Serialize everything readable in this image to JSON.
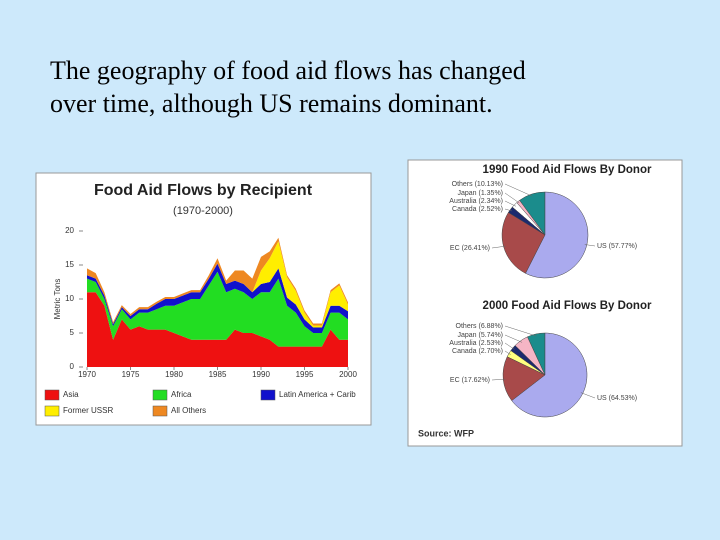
{
  "slide": {
    "title_lines": [
      "The geography of food aid flows has changed",
      "over time, although US remains dominant."
    ]
  },
  "source": "Source: WFP",
  "chart_data": [
    {
      "type": "area",
      "stacked": true,
      "title": "Food Aid Flows by Recipient",
      "subtitle": "(1970-2000)",
      "ylabel": "Metric Tons",
      "x": [
        1970,
        1971,
        1972,
        1973,
        1974,
        1975,
        1976,
        1977,
        1978,
        1979,
        1980,
        1981,
        1982,
        1983,
        1984,
        1985,
        1986,
        1987,
        1988,
        1989,
        1990,
        1991,
        1992,
        1993,
        1994,
        1995,
        1996,
        1997,
        1998,
        1999,
        2000
      ],
      "xlim": [
        1970,
        2000
      ],
      "xticks": [
        1970,
        1975,
        1980,
        1985,
        1990,
        1995,
        2000
      ],
      "ylim": [
        0,
        20
      ],
      "yticks": [
        0,
        5,
        10,
        15,
        20
      ],
      "series": [
        {
          "name": "Asia",
          "color": "#ee1111",
          "values": [
            11,
            11,
            9,
            4,
            7,
            5.5,
            6,
            5.5,
            5.5,
            5.5,
            5,
            4.5,
            4,
            4,
            4,
            4,
            4,
            5.5,
            5,
            5,
            4.5,
            4,
            3,
            3,
            3,
            3,
            3,
            3,
            5.5,
            4,
            4
          ]
        },
        {
          "name": "Africa",
          "color": "#22dd22",
          "values": [
            2,
            1.5,
            1,
            2,
            1.5,
            1.5,
            2,
            2.5,
            3,
            3.5,
            4,
            5,
            6,
            6,
            8,
            10,
            7,
            6,
            6,
            5,
            6.5,
            7,
            10,
            6,
            5,
            3,
            2,
            2,
            2.5,
            4,
            3
          ]
        },
        {
          "name": "Latin America + Carib",
          "color": "#1111cc",
          "values": [
            0.5,
            0.5,
            0.5,
            0.3,
            0.3,
            0.5,
            0.5,
            0.5,
            0.8,
            1,
            1,
            1,
            1,
            1,
            1,
            1.2,
            1.2,
            1.2,
            1.2,
            1,
            1.2,
            1.5,
            1.5,
            1.2,
            1.2,
            1,
            0.8,
            0.8,
            1,
            1,
            1.2
          ]
        },
        {
          "name": "Former USSR",
          "color": "#ffee00",
          "values": [
            0,
            0,
            0,
            0,
            0,
            0,
            0,
            0,
            0,
            0,
            0,
            0,
            0,
            0,
            0,
            0,
            0,
            0,
            0,
            0,
            2,
            3.5,
            4,
            3,
            2,
            1,
            0.3,
            0.3,
            2,
            3,
            1
          ]
        },
        {
          "name": "All Others",
          "color": "#ee8822",
          "values": [
            1,
            0.8,
            0.5,
            0.3,
            0.3,
            0.3,
            0.3,
            0.3,
            0.3,
            0.3,
            0.3,
            0.3,
            0.3,
            0.3,
            0.5,
            0.8,
            0.5,
            1.5,
            2,
            2,
            2,
            1,
            0.5,
            0.3,
            0.3,
            0.3,
            0.3,
            0.3,
            0.3,
            0.3,
            0.3
          ]
        }
      ]
    },
    {
      "type": "pie",
      "title": "1990 Food Aid Flows By Donor",
      "categories": [
        "Others (10.13%)",
        "Japan (1.35%)",
        "Australia (2.34%)",
        "Canada (2.52%)",
        "EC (26.41%)",
        "US (57.77%)"
      ],
      "values": [
        10.13,
        1.35,
        2.34,
        2.52,
        26.41,
        57.77
      ],
      "colors": [
        "#1b8c8c",
        "#f5b5c5",
        "#ffffff",
        "#1c2a6e",
        "#a84a4a",
        "#aaaaee"
      ]
    },
    {
      "type": "pie",
      "title": "2000 Food Aid Flows By Donor",
      "categories": [
        "Others (6.88%)",
        "Japan (5.74%)",
        "Australia (2.53%)",
        "Canada (2.70%)",
        "EC (17.62%)",
        "US (64.53%)"
      ],
      "values": [
        6.88,
        5.74,
        2.53,
        2.7,
        17.62,
        64.53
      ],
      "colors": [
        "#1b8c8c",
        "#f5b5c5",
        "#1c2a6e",
        "#ffff80",
        "#a84a4a",
        "#aaaaee"
      ]
    }
  ]
}
